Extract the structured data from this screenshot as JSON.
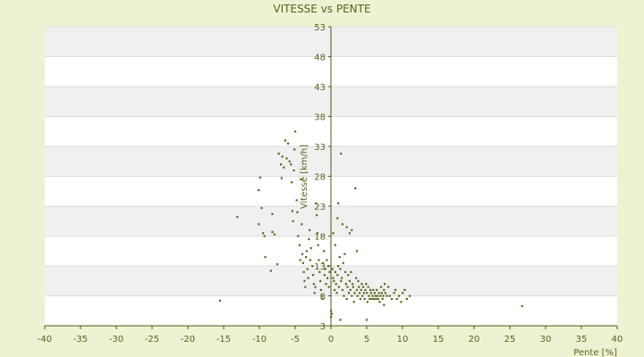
{
  "chart_data": {
    "type": "scatter",
    "title": "VITESSE vs PENTE",
    "xlabel": "Pente [%]",
    "ylabel": "Vitesse [km/h]",
    "xlim": [
      -40,
      40
    ],
    "ylim": [
      3,
      53
    ],
    "x_ticks": [
      "-40",
      "-35",
      "-30",
      "-25",
      "-20",
      "-15",
      "-10",
      "-5",
      "0",
      "5",
      "10",
      "15",
      "20",
      "25",
      "30",
      "35",
      "40"
    ],
    "y_ticks": [
      "3",
      "8",
      "13",
      "18",
      "23",
      "28",
      "33",
      "38",
      "43",
      "48",
      "53"
    ],
    "grid": true,
    "point_color": "#556b1a",
    "points": [
      [
        -15.5,
        7.2
      ],
      [
        -13.1,
        21.2
      ],
      [
        -10.1,
        20.0
      ],
      [
        -10.1,
        25.7
      ],
      [
        -9.9,
        27.8
      ],
      [
        -9.7,
        22.7
      ],
      [
        -9.5,
        18.5
      ],
      [
        -9.3,
        18.0
      ],
      [
        -9.2,
        14.5
      ],
      [
        -8.4,
        12.2
      ],
      [
        -8.2,
        21.7
      ],
      [
        -8.2,
        18.7
      ],
      [
        -7.9,
        18.3
      ],
      [
        -7.5,
        13.3
      ],
      [
        -7.3,
        31.8
      ],
      [
        -7.0,
        30.0
      ],
      [
        -6.9,
        27.7
      ],
      [
        -6.8,
        31.3
      ],
      [
        -6.6,
        29.5
      ],
      [
        -6.4,
        34.0
      ],
      [
        -6.2,
        31.0
      ],
      [
        -6.0,
        33.5
      ],
      [
        -5.8,
        30.5
      ],
      [
        -5.6,
        30.0
      ],
      [
        -5.5,
        27.0
      ],
      [
        -5.4,
        22.2
      ],
      [
        -5.3,
        20.5
      ],
      [
        -5.2,
        29.0
      ],
      [
        -5.1,
        32.5
      ],
      [
        -5.0,
        35.5
      ],
      [
        -4.8,
        24.0
      ],
      [
        -4.7,
        22.0
      ],
      [
        -4.6,
        18.0
      ],
      [
        -4.4,
        16.5
      ],
      [
        -4.3,
        14.0
      ],
      [
        -4.2,
        27.5
      ],
      [
        -4.1,
        20.0
      ],
      [
        -4.0,
        15.0
      ],
      [
        -3.9,
        13.5
      ],
      [
        -3.8,
        12.0
      ],
      [
        -3.7,
        10.5
      ],
      [
        -3.6,
        9.5
      ],
      [
        -3.5,
        14.5
      ],
      [
        -3.4,
        15.5
      ],
      [
        -3.3,
        12.5
      ],
      [
        -3.2,
        11.0
      ],
      [
        -3.1,
        17.5
      ],
      [
        -3.0,
        19.0
      ],
      [
        -2.9,
        14.0
      ],
      [
        -2.8,
        16.0
      ],
      [
        -2.6,
        13.0
      ],
      [
        -2.5,
        11.5
      ],
      [
        -2.4,
        10.0
      ],
      [
        -2.3,
        8.5
      ],
      [
        -2.2,
        9.5
      ],
      [
        -2.1,
        23.5
      ],
      [
        -2.0,
        21.5
      ],
      [
        -1.9,
        18.5
      ],
      [
        -1.8,
        16.5
      ],
      [
        -1.7,
        14.0
      ],
      [
        -1.6,
        12.0
      ],
      [
        -1.5,
        10.5
      ],
      [
        -1.4,
        9.0
      ],
      [
        -1.3,
        8.0
      ],
      [
        -1.2,
        7.5
      ],
      [
        -1.1,
        13.5
      ],
      [
        -1.0,
        15.5
      ],
      [
        -0.9,
        11.5
      ],
      [
        -0.8,
        12.5
      ],
      [
        -0.7,
        10.0
      ],
      [
        -0.6,
        14.0
      ],
      [
        -0.5,
        11.0
      ],
      [
        -0.4,
        13.0
      ],
      [
        -0.3,
        9.5
      ],
      [
        -0.2,
        12.0
      ],
      [
        0.0,
        5.5
      ],
      [
        0.0,
        4.5
      ],
      [
        0.1,
        5.0
      ],
      [
        0.2,
        12.5
      ],
      [
        0.3,
        11.0
      ],
      [
        0.4,
        10.5
      ],
      [
        0.5,
        9.0
      ],
      [
        0.6,
        12.0
      ],
      [
        0.7,
        10.0
      ],
      [
        0.8,
        8.5
      ],
      [
        0.9,
        11.5
      ],
      [
        1.0,
        13.0
      ],
      [
        1.1,
        9.5
      ],
      [
        1.2,
        14.5
      ],
      [
        1.3,
        12.5
      ],
      [
        1.4,
        10.5
      ],
      [
        1.5,
        11.0
      ],
      [
        1.6,
        9.0
      ],
      [
        1.7,
        13.5
      ],
      [
        1.8,
        8.0
      ],
      [
        1.9,
        15.0
      ],
      [
        2.0,
        12.0
      ],
      [
        2.1,
        10.0
      ],
      [
        2.2,
        7.5
      ],
      [
        2.3,
        9.5
      ],
      [
        2.4,
        11.5
      ],
      [
        2.5,
        8.5
      ],
      [
        2.6,
        10.5
      ],
      [
        2.7,
        9.0
      ],
      [
        2.8,
        12.0
      ],
      [
        2.9,
        8.0
      ],
      [
        3.0,
        10.0
      ],
      [
        3.1,
        9.5
      ],
      [
        3.2,
        7.0
      ],
      [
        3.3,
        8.5
      ],
      [
        3.4,
        26.0
      ],
      [
        3.5,
        11.0
      ],
      [
        3.6,
        9.0
      ],
      [
        3.7,
        8.0
      ],
      [
        3.8,
        10.5
      ],
      [
        3.9,
        9.5
      ],
      [
        4.0,
        8.5
      ],
      [
        4.1,
        7.5
      ],
      [
        4.2,
        9.0
      ],
      [
        4.3,
        10.0
      ],
      [
        4.4,
        8.0
      ],
      [
        4.5,
        9.5
      ],
      [
        4.6,
        8.5
      ],
      [
        4.7,
        7.5
      ],
      [
        4.8,
        9.0
      ],
      [
        4.9,
        10.0
      ],
      [
        5.0,
        8.5
      ],
      [
        5.1,
        7.0
      ],
      [
        5.2,
        9.5
      ],
      [
        5.3,
        8.0
      ],
      [
        5.4,
        7.5
      ],
      [
        5.5,
        9.0
      ],
      [
        5.6,
        8.5
      ],
      [
        5.7,
        7.5
      ],
      [
        5.8,
        8.0
      ],
      [
        5.9,
        9.0
      ],
      [
        6.0,
        7.5
      ],
      [
        6.1,
        8.5
      ],
      [
        6.2,
        8.0
      ],
      [
        6.3,
        7.5
      ],
      [
        6.4,
        9.0
      ],
      [
        6.5,
        8.0
      ],
      [
        6.6,
        7.5
      ],
      [
        6.7,
        8.5
      ],
      [
        6.8,
        7.0
      ],
      [
        6.9,
        8.0
      ],
      [
        7.0,
        9.5
      ],
      [
        7.1,
        8.5
      ],
      [
        7.2,
        7.5
      ],
      [
        7.3,
        8.0
      ],
      [
        7.4,
        9.0
      ],
      [
        7.5,
        10.0
      ],
      [
        7.6,
        8.5
      ],
      [
        7.8,
        8.0
      ],
      [
        8.0,
        9.5
      ],
      [
        8.2,
        8.0
      ],
      [
        8.5,
        7.5
      ],
      [
        8.8,
        8.5
      ],
      [
        9.0,
        9.0
      ],
      [
        9.2,
        7.5
      ],
      [
        9.5,
        8.0
      ],
      [
        9.8,
        7.0
      ],
      [
        10.0,
        8.5
      ],
      [
        10.3,
        9.0
      ],
      [
        10.6,
        7.5
      ],
      [
        11.0,
        8.0
      ],
      [
        1.4,
        31.8
      ],
      [
        2.2,
        19.5
      ],
      [
        2.9,
        19.0
      ],
      [
        3.6,
        15.5
      ],
      [
        0.3,
        18.5
      ],
      [
        0.6,
        16.5
      ],
      [
        1.0,
        23.5
      ],
      [
        0.9,
        21.0
      ],
      [
        1.6,
        20.0
      ],
      [
        2.6,
        18.5
      ],
      [
        5.0,
        4.0
      ],
      [
        7.4,
        6.5
      ],
      [
        26.7,
        6.3
      ],
      [
        1.3,
        4.0
      ]
    ]
  }
}
